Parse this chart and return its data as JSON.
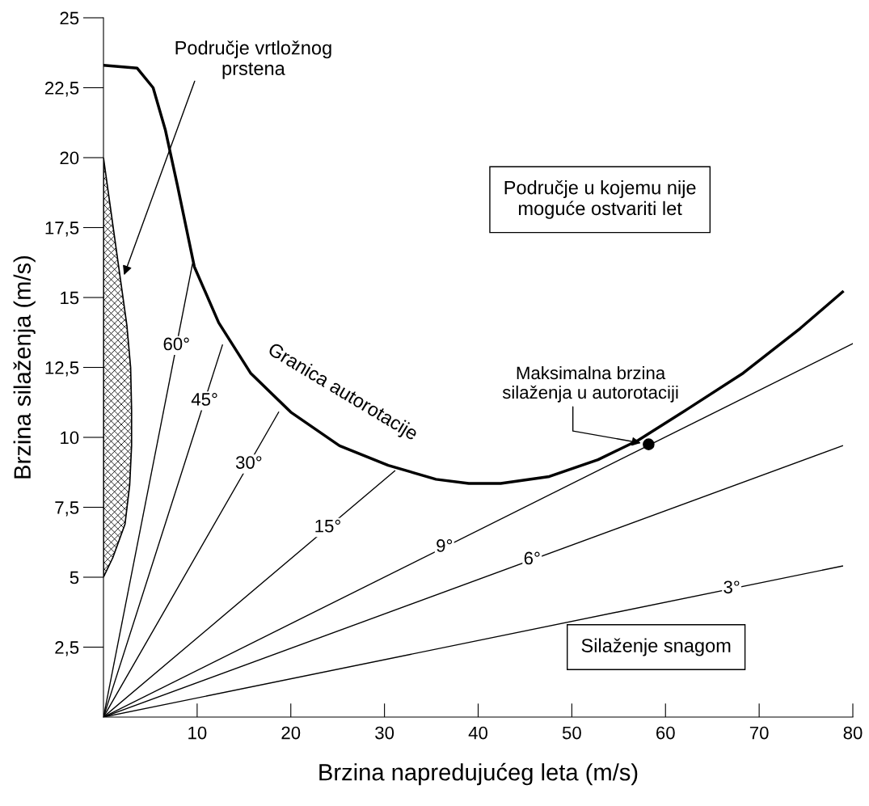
{
  "chart_data": {
    "type": "line",
    "xlabel": "Brzina napredujućeg leta (m/s)",
    "ylabel": "Brzina silaženja (m/s)",
    "xlim": [
      0,
      80
    ],
    "ylim": [
      0,
      25
    ],
    "xticks": [
      10,
      20,
      30,
      40,
      50,
      60,
      70,
      80
    ],
    "yticks": [
      {
        "value": 2.5,
        "label": "2,5"
      },
      5,
      {
        "value": 7.5,
        "label": "7,5"
      },
      10,
      {
        "value": 12.5,
        "label": "12,5"
      },
      15,
      {
        "value": 17.5,
        "label": "17,5"
      },
      20,
      {
        "value": 22.5,
        "label": "22,5"
      },
      25
    ],
    "grid": false,
    "legend": false,
    "series": [
      {
        "name": "Granica autorotacije",
        "color": "#000000",
        "x": [
          0,
          3.6,
          5.3,
          6.6,
          7.9,
          9.7,
          12.3,
          15.7,
          20,
          25.2,
          30.4,
          35.5,
          39,
          42.4,
          47.6,
          52.8,
          57.1,
          62.3,
          68.3,
          74.4,
          78.9
        ],
        "values": [
          23.3,
          23.2,
          22.5,
          21,
          19,
          16.1,
          14.1,
          12.3,
          10.9,
          9.7,
          9.0,
          8.5,
          8.35,
          8.35,
          8.6,
          9.2,
          9.9,
          11.0,
          12.3,
          13.9,
          15.2
        ]
      },
      {
        "name": "60°",
        "color": "#000000",
        "x": [
          0,
          9.5
        ],
        "values": [
          0,
          16.2
        ]
      },
      {
        "name": "45°",
        "color": "#000000",
        "x": [
          0,
          12.7
        ],
        "values": [
          0,
          13.3
        ]
      },
      {
        "name": "30°",
        "color": "#000000",
        "x": [
          0,
          18.7
        ],
        "values": [
          0,
          10.9
        ]
      },
      {
        "name": "15°",
        "color": "#000000",
        "x": [
          0,
          31.1
        ],
        "values": [
          0,
          8.8
        ]
      },
      {
        "name": "9°",
        "color": "#000000",
        "x": [
          0,
          80
        ],
        "values": [
          0,
          13.35
        ]
      },
      {
        "name": "6°",
        "color": "#000000",
        "x": [
          0,
          78.9
        ],
        "values": [
          0,
          9.7
        ]
      },
      {
        "name": "3°",
        "color": "#000000",
        "x": [
          0,
          78.9
        ],
        "values": [
          0,
          5.4
        ]
      },
      {
        "type": "area",
        "color": "#000000",
        "x": [
          0,
          1,
          2,
          2.5,
          2.9,
          3.0,
          3.0,
          2.8,
          2.3,
          1.0,
          0
        ],
        "values": [
          20,
          17.6,
          15.2,
          14,
          12.5,
          11,
          9.7,
          8.3,
          6.9,
          5.7,
          5
        ]
      },
      {
        "type": "scatter",
        "color": "#000000",
        "marker": "circle",
        "x": [
          58.2
        ],
        "values": [
          9.75
        ]
      }
    ],
    "annotations": [
      {
        "text": "Područje vrtložnog\nprstena",
        "x": 2.2,
        "y": 15.8
      },
      "Područje u kojemu nije\nmoguće ostvariti let",
      {
        "text": "Maksimalna brzina\nsilaženja u autorotaciji",
        "x": 58.2,
        "y": 9.75
      },
      "Silaženje snagom"
    ]
  }
}
